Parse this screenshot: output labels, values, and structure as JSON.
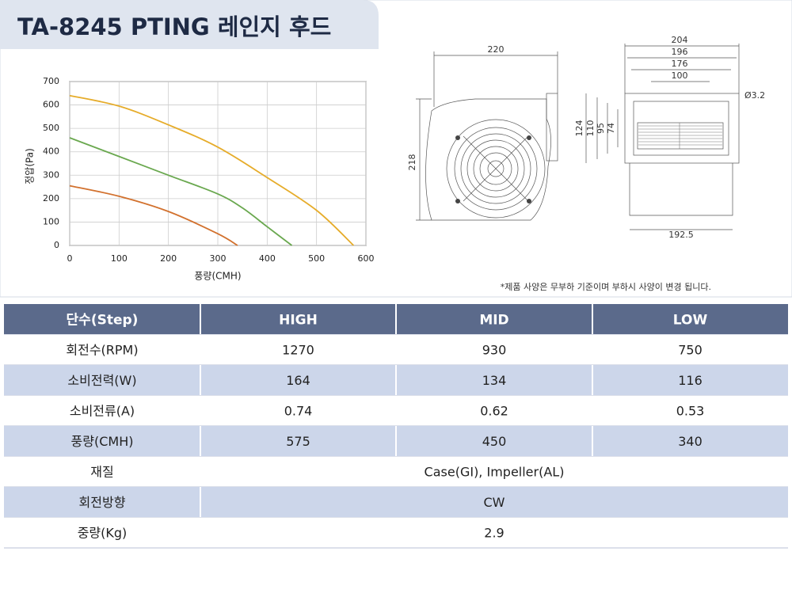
{
  "header": {
    "title": "TA-8245 PTING 레인지 후드"
  },
  "chart_data": {
    "type": "line",
    "xlabel": "풍량(CMH)",
    "ylabel": "정압(Pa)",
    "xlim": [
      0,
      600
    ],
    "xticks": [
      0,
      100,
      200,
      300,
      400,
      500,
      600
    ],
    "ylim": [
      0,
      700
    ],
    "yticks": [
      0,
      100,
      200,
      300,
      400,
      500,
      600,
      700
    ],
    "series": [
      {
        "color": "#e6ac2a",
        "x": [
          0,
          100,
          200,
          300,
          400,
          500,
          575
        ],
        "values": [
          640,
          595,
          515,
          420,
          290,
          150,
          0
        ]
      },
      {
        "color": "#6aa84f",
        "x": [
          0,
          100,
          200,
          300,
          350,
          400,
          450
        ],
        "values": [
          460,
          380,
          300,
          220,
          160,
          80,
          0
        ]
      },
      {
        "color": "#d2712e",
        "x": [
          0,
          100,
          200,
          300,
          340
        ],
        "values": [
          255,
          210,
          145,
          50,
          0
        ]
      }
    ]
  },
  "drawing": {
    "dimensions": [
      "220",
      "218",
      "204",
      "196",
      "176",
      "100",
      "124",
      "110",
      "95",
      "74",
      "Ø3.2",
      "192.5"
    ]
  },
  "note": "*제품 사양은 무부하 기준이며 부하시 사양이 변경 됩니다.",
  "table": {
    "header": [
      "단수(Step)",
      "HIGH",
      "MID",
      "LOW"
    ],
    "rows": [
      [
        "회전수(RPM)",
        "1270",
        "930",
        "750"
      ],
      [
        "소비전력(W)",
        "164",
        "134",
        "116"
      ],
      [
        "소비전류(A)",
        "0.74",
        "0.62",
        "0.53"
      ],
      [
        "풍량(CMH)",
        "575",
        "450",
        "340"
      ],
      [
        "재질",
        "Case(GI), Impeller(AL)"
      ],
      [
        "회전방향",
        "CW"
      ],
      [
        "중량(Kg)",
        "2.9"
      ]
    ]
  }
}
